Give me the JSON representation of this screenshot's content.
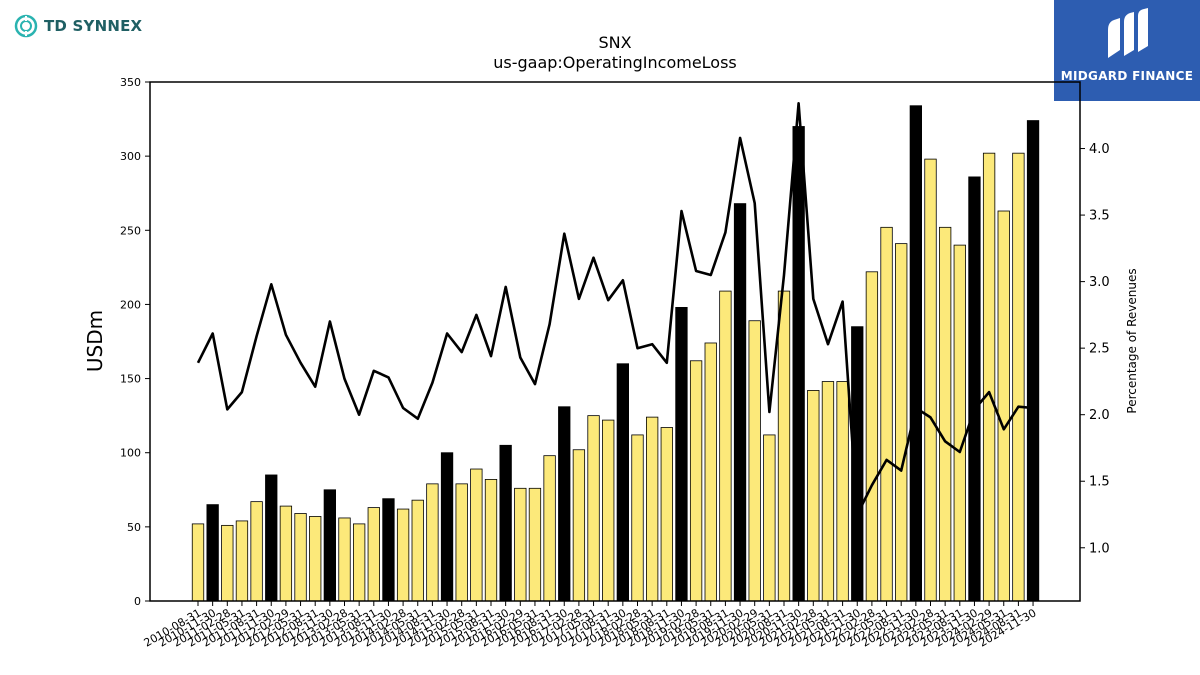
{
  "brand_left": {
    "name": "TD SYNNEX"
  },
  "brand_right": {
    "name": "MIDGARD FINANCE"
  },
  "chart_data": {
    "type": "bar",
    "title": "SNX",
    "subtitle": "us-gaap:OperatingIncomeLoss",
    "ylabel": "USDm",
    "ylabel_right": "Percentage of Revenues",
    "ylim": [
      0,
      350
    ],
    "ylim_right": [
      0.6,
      4.5
    ],
    "yticks": [
      0,
      50,
      100,
      150,
      200,
      250,
      300,
      350
    ],
    "yticks_right": [
      "1.0",
      "1.5",
      "2.0",
      "2.5",
      "3.0",
      "3.5",
      "4.0"
    ],
    "colors": {
      "quarter": "#fce97a",
      "annual": "#000000",
      "line": "#000000"
    },
    "categories": [
      "2010-08-31",
      "2010-11-30",
      "2011-02-28",
      "2011-05-31",
      "2011-08-31",
      "2011-11-30",
      "2012-02-29",
      "2012-05-31",
      "2012-08-31",
      "2012-11-30",
      "2013-02-28",
      "2013-05-31",
      "2013-08-31",
      "2013-11-30",
      "2014-02-28",
      "2014-05-31",
      "2014-08-31",
      "2014-11-30",
      "2015-02-28",
      "2015-05-31",
      "2015-08-31",
      "2015-11-30",
      "2016-02-29",
      "2016-05-31",
      "2016-08-31",
      "2016-11-30",
      "2017-02-28",
      "2017-05-31",
      "2017-08-31",
      "2017-11-30",
      "2018-02-28",
      "2018-05-31",
      "2018-08-31",
      "2018-11-30",
      "2019-02-28",
      "2019-05-31",
      "2019-08-31",
      "2019-11-30",
      "2020-02-29",
      "2020-05-31",
      "2020-08-31",
      "2020-11-30",
      "2021-02-28",
      "2021-05-31",
      "2021-08-31",
      "2021-11-30",
      "2022-02-28",
      "2022-05-31",
      "2022-08-31",
      "2022-11-30",
      "2023-02-28",
      "2023-05-31",
      "2023-08-31",
      "2023-11-30",
      "2024-02-29",
      "2024-05-31",
      "2024-08-31",
      "2024-11-30"
    ],
    "series": [
      {
        "values": [
          52,
          65,
          51,
          54,
          67,
          85,
          64,
          59,
          57,
          75,
          56,
          52,
          63,
          69,
          62,
          68,
          79,
          100,
          79,
          89,
          82,
          105,
          76,
          76,
          98,
          131,
          102,
          125,
          122,
          160,
          112,
          124,
          117,
          198,
          162,
          174,
          209,
          268,
          189,
          112,
          209,
          320,
          142,
          148,
          148,
          185,
          222,
          252,
          241,
          334,
          298,
          252,
          240,
          286,
          302,
          263,
          302,
          324
        ]
      },
      {
        "values": [
          2.39,
          2.61,
          2.04,
          2.17,
          2.59,
          2.98,
          2.6,
          2.39,
          2.21,
          2.7,
          2.27,
          2.0,
          2.33,
          2.28,
          2.05,
          1.97,
          2.24,
          2.61,
          2.47,
          2.75,
          2.44,
          2.96,
          2.43,
          2.23,
          2.68,
          3.36,
          2.87,
          3.18,
          2.86,
          3.01,
          2.5,
          2.53,
          2.39,
          3.53,
          3.08,
          3.05,
          3.37,
          4.08,
          3.59,
          2.02,
          3.05,
          4.34,
          2.87,
          2.53,
          2.85,
          1.25,
          1.47,
          1.66,
          1.58,
          2.05,
          1.98,
          1.8,
          1.72,
          2.04,
          2.17,
          1.89,
          2.06,
          2.05
        ]
      }
    ],
    "annual_flags": [
      0,
      1,
      0,
      0,
      0,
      1,
      0,
      0,
      0,
      1,
      0,
      0,
      0,
      1,
      0,
      0,
      0,
      1,
      0,
      0,
      0,
      1,
      0,
      0,
      0,
      1,
      0,
      0,
      0,
      1,
      0,
      0,
      0,
      1,
      0,
      0,
      0,
      1,
      0,
      0,
      0,
      1,
      0,
      0,
      0,
      1,
      0,
      0,
      0,
      1,
      0,
      0,
      0,
      1,
      0,
      0,
      0,
      1
    ]
  }
}
